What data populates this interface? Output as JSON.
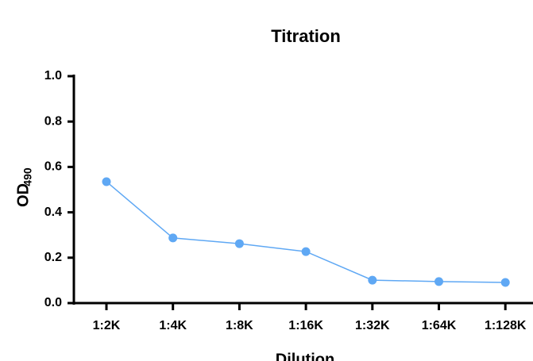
{
  "chart_data": {
    "type": "line",
    "title": "Titration",
    "x_label": "Dilution",
    "y_label": {
      "main": "OD",
      "subscript": "490"
    },
    "categories": [
      "1:2K",
      "1:4K",
      "1:8K",
      "1:16K",
      "1:32K",
      "1:64K",
      "1:128K"
    ],
    "series": [
      {
        "color": "#5fa8f4",
        "values": [
          0.535,
          0.287,
          0.262,
          0.227,
          0.101,
          0.095,
          0.091
        ]
      }
    ],
    "ylim": [
      0,
      1
    ],
    "yticks": [
      {
        "value": 0,
        "label": "0.0"
      },
      0.2,
      0.4,
      0.6,
      0.8,
      {
        "value": 1,
        "label": "1.0"
      }
    ],
    "grid": false
  }
}
